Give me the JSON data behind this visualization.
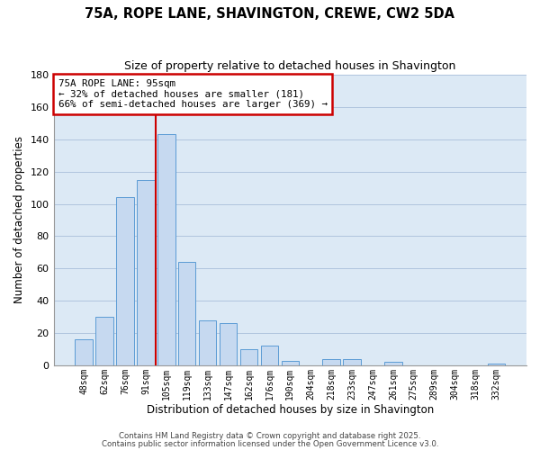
{
  "title": "75A, ROPE LANE, SHAVINGTON, CREWE, CW2 5DA",
  "subtitle": "Size of property relative to detached houses in Shavington",
  "xlabel": "Distribution of detached houses by size in Shavington",
  "ylabel": "Number of detached properties",
  "bar_labels": [
    "48sqm",
    "62sqm",
    "76sqm",
    "91sqm",
    "105sqm",
    "119sqm",
    "133sqm",
    "147sqm",
    "162sqm",
    "176sqm",
    "190sqm",
    "204sqm",
    "218sqm",
    "233sqm",
    "247sqm",
    "261sqm",
    "275sqm",
    "289sqm",
    "304sqm",
    "318sqm",
    "332sqm"
  ],
  "bar_values": [
    16,
    30,
    104,
    115,
    143,
    64,
    28,
    26,
    10,
    12,
    3,
    0,
    4,
    4,
    0,
    2,
    0,
    0,
    0,
    0,
    1
  ],
  "bar_color": "#c6d9f0",
  "bar_edge_color": "#5b9bd5",
  "plot_bg_color": "#dce9f5",
  "background_color": "#ffffff",
  "grid_color": "#b0c4de",
  "annotation_line1": "75A ROPE LANE: 95sqm",
  "annotation_line2": "← 32% of detached houses are smaller (181)",
  "annotation_line3": "66% of semi-detached houses are larger (369) →",
  "annotation_box_edge_color": "#cc0000",
  "vertical_line_x": 3.5,
  "vertical_line_color": "#cc0000",
  "ylim": [
    0,
    180
  ],
  "yticks": [
    0,
    20,
    40,
    60,
    80,
    100,
    120,
    140,
    160,
    180
  ],
  "footnote1": "Contains HM Land Registry data © Crown copyright and database right 2025.",
  "footnote2": "Contains public sector information licensed under the Open Government Licence v3.0."
}
